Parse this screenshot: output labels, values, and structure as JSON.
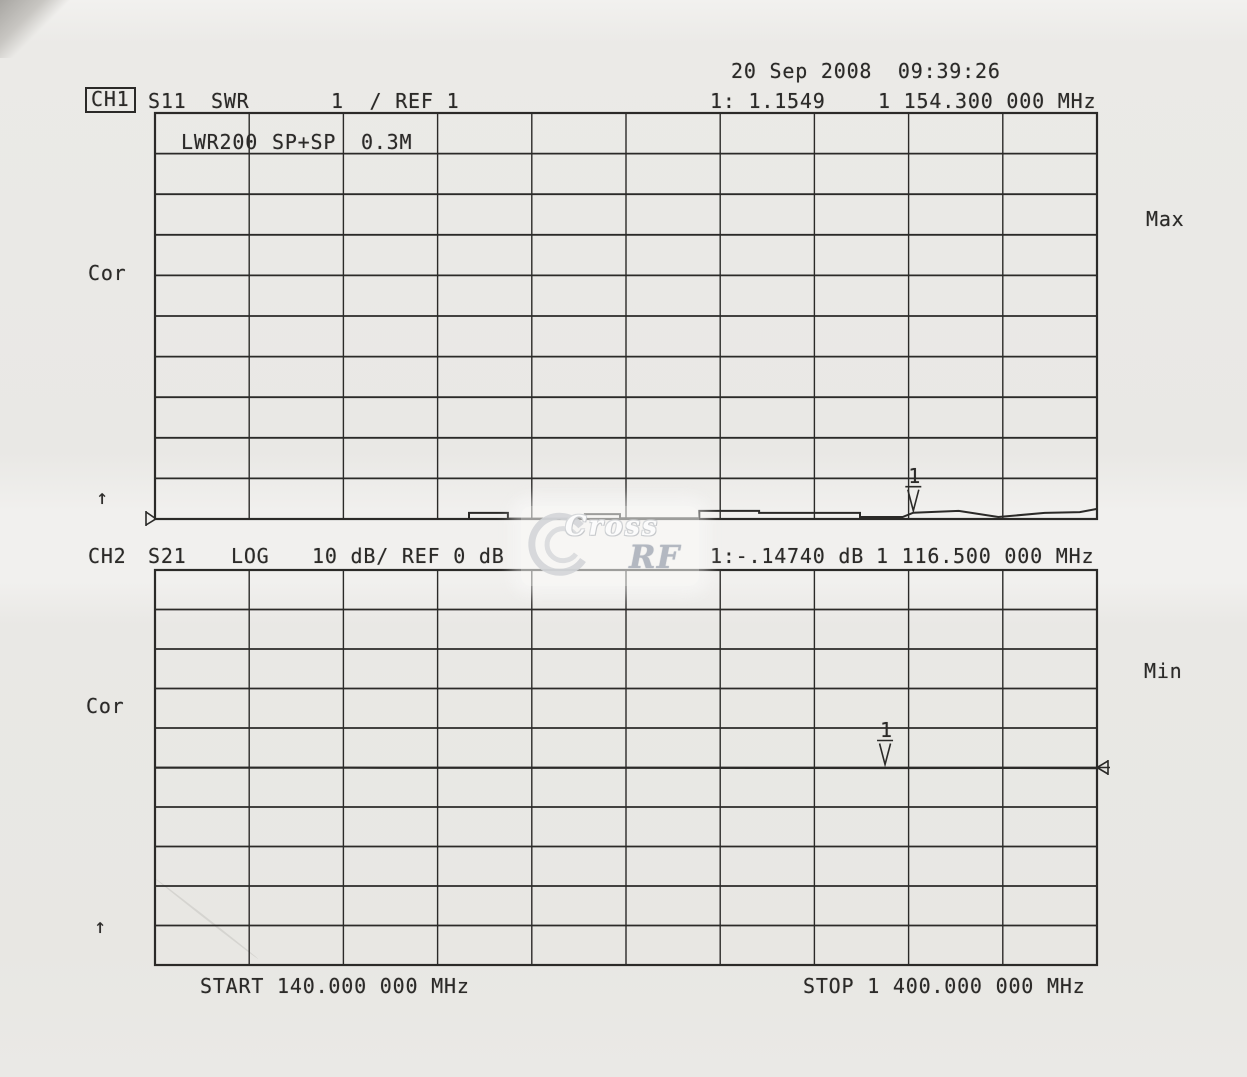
{
  "header": {
    "datetime": "20 Sep 2008  09:39:26"
  },
  "ch1": {
    "channel": "CH1",
    "s_param": "S11",
    "format": "SWR",
    "scale_ref": "1  / REF 1",
    "marker_readout": "1: 1.1549",
    "marker_freq": "1 154.300 000 MHz",
    "annotation_parts": [
      "LWR200",
      "SP+SP",
      "0.3M"
    ],
    "cor": "Cor",
    "side_label": "Max",
    "sweep_arrow": "↑",
    "marker_number": "1"
  },
  "ch2": {
    "channel": "CH2",
    "s_param": "S21",
    "format": "LOG",
    "scale_ref": "10 dB/ REF 0 dB",
    "marker_readout": "1:-.14740 dB",
    "marker_freq": "1 116.500 000 MHz",
    "cor": "Cor",
    "side_label": "Min",
    "sweep_arrow": "↑",
    "marker_number": "1"
  },
  "footer": {
    "start": "START 140.000 000 MHz",
    "stop": "STOP 1 400.000 000 MHz"
  },
  "watermark": {
    "word1": "Cross",
    "word2": "RF"
  },
  "colors": {
    "ink": "#2b2a28",
    "paper": "#eae9e6",
    "watermark_gray": "#c3c6cb"
  },
  "chart_data": [
    {
      "type": "line",
      "instrument_channel": "CH1",
      "measurement": "S11",
      "format": "SWR",
      "title": "CH1 S11 SWR 1 / REF 1",
      "annotation": "LWR200 SP+SP 0.3M",
      "scale_per_div": 1,
      "ref_value": 1,
      "ref_position": "bottom",
      "divisions_x": 10,
      "divisions_y": 10,
      "grid": "on",
      "x_unit": "MHz",
      "x_start": 140,
      "x_stop": 1400,
      "ylim": [
        1,
        11
      ],
      "marker": {
        "number": 1,
        "x": 1154.3,
        "value": 1.1549
      },
      "series": [
        {
          "name": "S11 SWR",
          "x": [
            140,
            560,
            560,
            612,
            612,
            715,
            715,
            762,
            762,
            868,
            868,
            948,
            948,
            1083,
            1083,
            1140,
            1154.3,
            1215,
            1215,
            1268,
            1268,
            1330,
            1330,
            1377,
            1377,
            1400
          ],
          "y": [
            1.0,
            1.0,
            1.15,
            1.15,
            1.01,
            1.01,
            1.12,
            1.12,
            1.02,
            1.02,
            1.2,
            1.2,
            1.15,
            1.15,
            1.05,
            1.05,
            1.155,
            1.2,
            1.2,
            1.05,
            1.05,
            1.15,
            1.15,
            1.17,
            1.17,
            1.25
          ]
        }
      ]
    },
    {
      "type": "line",
      "instrument_channel": "CH2",
      "measurement": "S21",
      "format": "LOG",
      "title": "CH2 S21 LOG 10 dB/ REF 0 dB",
      "unit": "dB",
      "scale_per_div": 10,
      "ref_value": 0,
      "ref_position": "middle",
      "divisions_x": 10,
      "divisions_y": 10,
      "grid": "on",
      "x_unit": "MHz",
      "x_start": 140,
      "x_stop": 1400,
      "ylim": [
        -50,
        50
      ],
      "marker": {
        "number": 1,
        "x": 1116.5,
        "value": -0.1474
      },
      "series": [
        {
          "name": "S21 dB",
          "x": [
            140,
            400,
            700,
            1000,
            1116.5,
            1250,
            1400
          ],
          "y": [
            -0.05,
            -0.08,
            -0.1,
            -0.12,
            -0.1474,
            -0.13,
            -0.18
          ]
        }
      ]
    }
  ]
}
